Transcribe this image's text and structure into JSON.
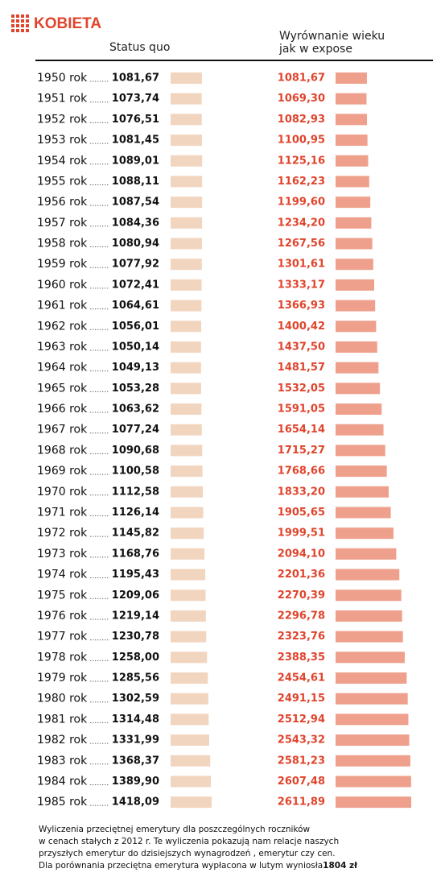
{
  "chart_data": {
    "type": "bar",
    "title": "KOBIETA",
    "categories": [
      "1950 rok",
      "1951 rok",
      "1952 rok",
      "1953 rok",
      "1954 rok",
      "1955 rok",
      "1956 rok",
      "1957 rok",
      "1958 rok",
      "1959 rok",
      "1960 rok",
      "1961 rok",
      "1962 rok",
      "1963 rok",
      "1964 rok",
      "1965 rok",
      "1966 rok",
      "1967 rok",
      "1968 rok",
      "1969 rok",
      "1970 rok",
      "1971 rok",
      "1972 rok",
      "1973 rok",
      "1974 rok",
      "1975 rok",
      "1976 rok",
      "1977 rok",
      "1978 rok",
      "1979 rok",
      "1980 rok",
      "1981 rok",
      "1982 rok",
      "1983 rok",
      "1984 rok",
      "1985 rok"
    ],
    "series": [
      {
        "name": "Status quo",
        "color": "#f2d5bf",
        "label_color": "#111111",
        "values": [
          1081.67,
          1073.74,
          1076.51,
          1081.45,
          1089.01,
          1088.11,
          1087.54,
          1084.36,
          1080.94,
          1077.92,
          1072.41,
          1064.61,
          1056.01,
          1050.14,
          1049.13,
          1053.28,
          1063.62,
          1077.24,
          1090.68,
          1100.58,
          1112.58,
          1126.14,
          1145.82,
          1168.76,
          1195.43,
          1209.06,
          1219.14,
          1230.78,
          1258.0,
          1285.56,
          1302.59,
          1314.48,
          1331.99,
          1368.37,
          1389.9,
          1418.09
        ],
        "value_labels": [
          "1081,67",
          "1073,74",
          "1076,51",
          "1081,45",
          "1089,01",
          "1088,11",
          "1087,54",
          "1084,36",
          "1080,94",
          "1077,92",
          "1072,41",
          "1064,61",
          "1056,01",
          "1050,14",
          "1049,13",
          "1053,28",
          "1063,62",
          "1077,24",
          "1090,68",
          "1100,58",
          "1112,58",
          "1126,14",
          "1145,82",
          "1168,76",
          "1195,43",
          "1209,06",
          "1219,14",
          "1230,78",
          "1258,00",
          "1285,56",
          "1302,59",
          "1314,48",
          "1331,99",
          "1368,37",
          "1389,90",
          "1418,09"
        ]
      },
      {
        "name": "Wyrównanie wieku jak w expose",
        "color": "#eea08c",
        "label_color": "#e0442c",
        "values": [
          1081.67,
          1069.3,
          1082.93,
          1100.95,
          1125.16,
          1162.23,
          1199.6,
          1234.2,
          1267.56,
          1301.61,
          1333.17,
          1366.93,
          1400.42,
          1437.5,
          1481.57,
          1532.05,
          1591.05,
          1654.14,
          1715.27,
          1768.66,
          1833.2,
          1905.65,
          1999.51,
          2094.1,
          2201.36,
          2270.39,
          2296.78,
          2323.76,
          2388.35,
          2454.61,
          2491.15,
          2512.94,
          2543.32,
          2581.23,
          2607.48,
          2611.89
        ],
        "value_labels": [
          "1081,67",
          "1069,30",
          "1082,93",
          "1100,95",
          "1125,16",
          "1162,23",
          "1199,60",
          "1234,20",
          "1267,56",
          "1301,61",
          "1333,17",
          "1366,93",
          "1400,42",
          "1437,50",
          "1481,57",
          "1532,05",
          "1591,05",
          "1654,14",
          "1715,27",
          "1768,66",
          "1833,20",
          "1905,65",
          "1999,51",
          "2094,10",
          "2201,36",
          "2270,39",
          "2296,78",
          "2323,76",
          "2388,35",
          "2454,61",
          "2491,15",
          "2512,94",
          "2543,32",
          "2581,23",
          "2607,48",
          "2611,89"
        ]
      }
    ],
    "footnote": [
      "Wyliczenia przeciętnej emerytury dla poszczególnych roczników",
      "w cenach stałych z 2012 r.  Te wyliczenia pokazują nam relacje naszych",
      "przyszłych emerytur  do dzisiejszych wynagrodzeń , emerytur czy  cen.",
      "Dla porównania przeciętna emerytura  wypłacona w lutym wyniosła "
    ],
    "footnote_bold": "1804 zł"
  }
}
